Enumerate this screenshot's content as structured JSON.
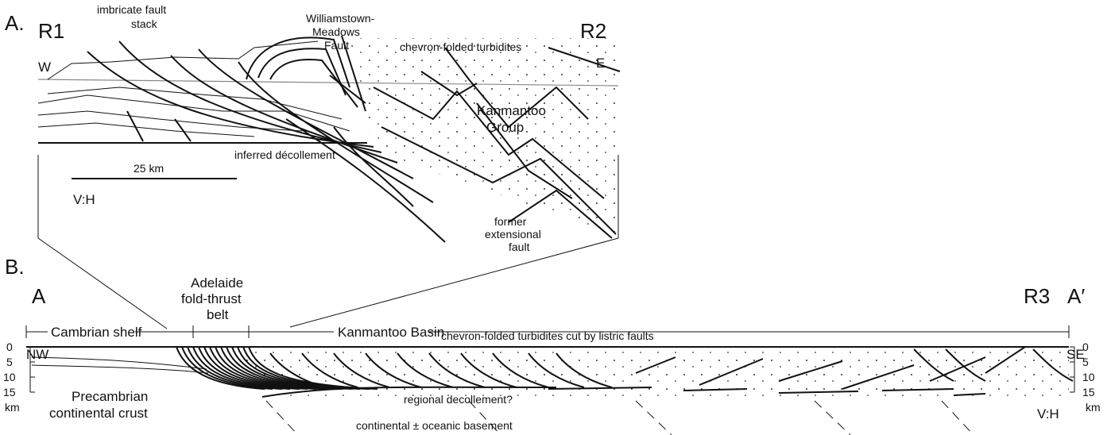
{
  "panel_a": {
    "label": "A.",
    "left_marker": "R1",
    "right_marker": "R2",
    "west": "W",
    "east": "E",
    "imbricate": [
      "imbricate fault",
      "stack"
    ],
    "fault_name": [
      "Williamstown-",
      "Meadows",
      "Fault"
    ],
    "turbidites": "chevron-folded turbidites",
    "group": [
      "Kanmantoo",
      "Group"
    ],
    "decollement": "inferred décollement",
    "extensional": [
      "former",
      "extensional",
      "fault"
    ],
    "scale_bar": "25 km",
    "ratio": "V:H"
  },
  "panel_b": {
    "label": "B.",
    "start_marker": "A",
    "r3": "R3",
    "end_marker": "A′",
    "shelf": "Cambrian shelf",
    "belt": [
      "Adelaide",
      "fold-thrust",
      "belt"
    ],
    "basin": "Kanmantoo Basin",
    "northwest": "NW",
    "southeast": "SE",
    "turbidites": "chevron-folded turbidites cut by  listric faults",
    "depth_ticks": [
      "0",
      "5",
      "10",
      "15"
    ],
    "depth_unit": "km",
    "crust": [
      "Precambrian",
      "continental crust"
    ],
    "decollement": "regional decollement?",
    "basement": "continental ± oceanic basement",
    "ratio": "V:H"
  }
}
